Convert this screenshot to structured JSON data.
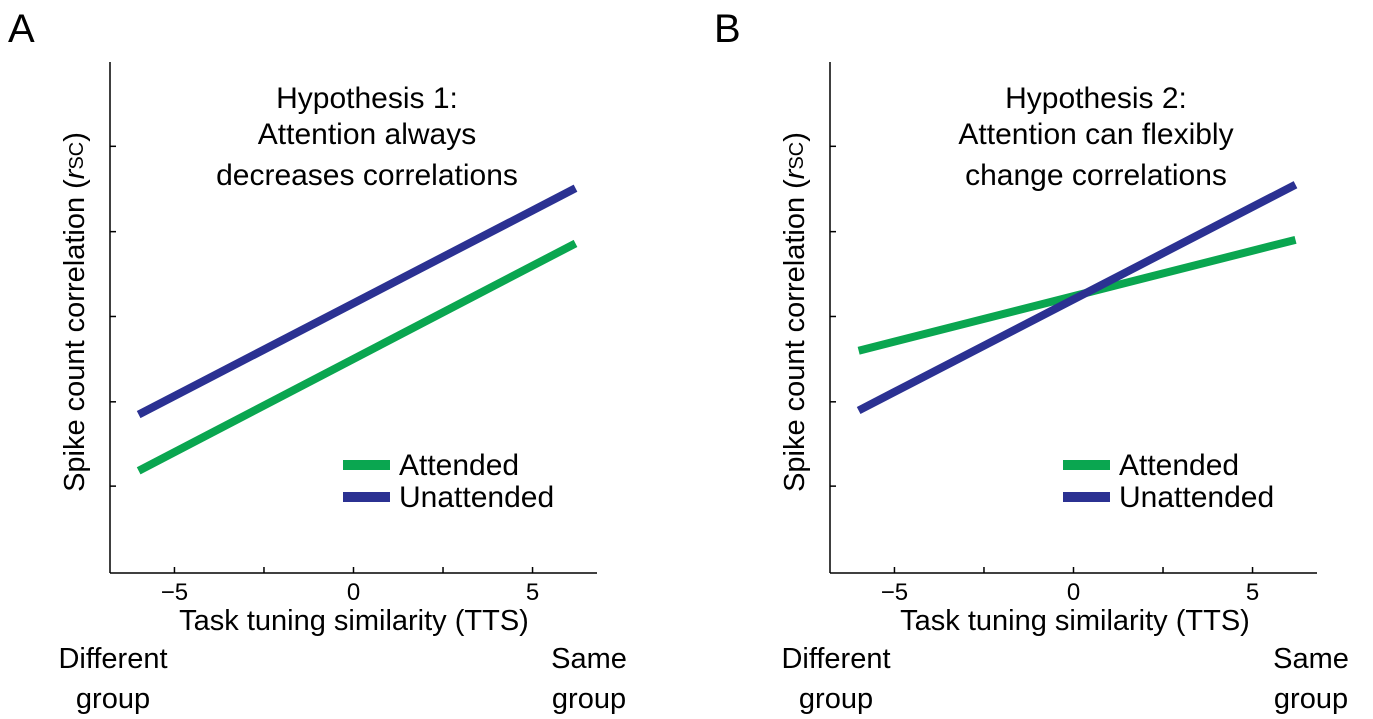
{
  "colors": {
    "attended": "#0aa650",
    "unattended": "#2b3192",
    "axis": "#000000"
  },
  "chart_data": [
    {
      "type": "line",
      "panel_label": "A",
      "annotation_lines": [
        "Hypothesis 1:",
        "Attention always",
        "decreases correlations"
      ],
      "xlabel": "Task tuning similarity (TTS)",
      "ylabel_main": "Spike count correlation (",
      "ylabel_italic": "r",
      "ylabel_sub": "SC",
      "ylabel_close": ")",
      "x_ticks": [
        -5,
        0,
        5
      ],
      "x_tick_labels": [
        "−5",
        "0",
        "5"
      ],
      "xlim": [
        -6.8,
        6.8
      ],
      "ylim": [
        0,
        1
      ],
      "grid": false,
      "end_labels": {
        "left": [
          "Different",
          "group"
        ],
        "right": [
          "Same",
          "group"
        ]
      },
      "legend_position": "lower-right",
      "series": [
        {
          "name": "Attended",
          "color_key": "attended",
          "x": [
            -6,
            6.2
          ],
          "y": [
            0.2,
            0.645
          ]
        },
        {
          "name": "Unattended",
          "color_key": "unattended",
          "x": [
            -6,
            6.2
          ],
          "y": [
            0.31,
            0.753
          ]
        }
      ]
    },
    {
      "type": "line",
      "panel_label": "B",
      "annotation_lines": [
        "Hypothesis 2:",
        "Attention can flexibly",
        "change correlations"
      ],
      "xlabel": "Task tuning similarity (TTS)",
      "ylabel_main": "Spike count correlation (",
      "ylabel_italic": "r",
      "ylabel_sub": "SC",
      "ylabel_close": ")",
      "x_ticks": [
        -5,
        0,
        5
      ],
      "x_tick_labels": [
        "−5",
        "0",
        "5"
      ],
      "xlim": [
        -6.8,
        6.8
      ],
      "ylim": [
        0,
        1
      ],
      "grid": false,
      "end_labels": {
        "left": [
          "Different",
          "group"
        ],
        "right": [
          "Same",
          "group"
        ]
      },
      "legend_position": "lower-right",
      "series": [
        {
          "name": "Attended",
          "color_key": "attended",
          "x": [
            -6,
            6.2
          ],
          "y": [
            0.435,
            0.652
          ]
        },
        {
          "name": "Unattended",
          "color_key": "unattended",
          "x": [
            -6,
            6.2
          ],
          "y": [
            0.318,
            0.76
          ]
        }
      ]
    }
  ]
}
